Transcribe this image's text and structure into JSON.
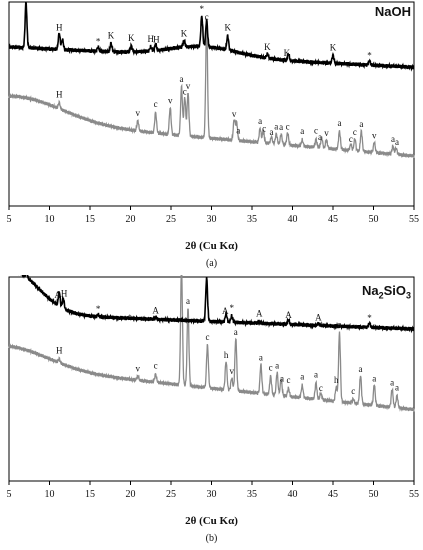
{
  "chart_data": [
    {
      "type": "line",
      "title": "NaOH",
      "xlabel": "2θ (Cu Kα)",
      "ylabel": "",
      "xlim": [
        5,
        55
      ],
      "xticks": [
        5,
        10,
        15,
        20,
        25,
        30,
        35,
        40,
        45,
        50,
        55
      ],
      "caption": "(a)",
      "grid": false,
      "series": [
        {
          "color": "#8a8a8a",
          "baseline": 0.42,
          "slope": -0.0035,
          "bump": {
            "center": 6,
            "amp": 0.12,
            "width": 8
          },
          "peaks": [
            [
              11.2,
              0.03
            ],
            [
              20.9,
              0.05
            ],
            [
              23.1,
              0.1
            ],
            [
              24.9,
              0.13
            ],
            [
              26.3,
              0.24
            ],
            [
              26.7,
              0.19
            ],
            [
              27.1,
              0.21
            ],
            [
              29.4,
              0.56
            ],
            [
              32.8,
              0.1
            ],
            [
              33.1,
              0.09
            ],
            [
              36.0,
              0.07
            ],
            [
              36.4,
              0.06
            ],
            [
              37.4,
              0.03
            ],
            [
              38.0,
              0.05
            ],
            [
              38.6,
              0.05
            ],
            [
              39.4,
              0.06
            ],
            [
              41.2,
              0.03
            ],
            [
              42.9,
              0.04
            ],
            [
              43.6,
              0.05
            ],
            [
              44.2,
              0.04
            ],
            [
              45.8,
              0.09
            ],
            [
              47.2,
              0.03
            ],
            [
              47.7,
              0.06
            ],
            [
              48.5,
              0.1
            ],
            [
              50.1,
              0.05
            ],
            [
              52.4,
              0.04
            ],
            [
              52.8,
              0.03
            ]
          ]
        },
        {
          "color": "#000000",
          "baseline": 0.78,
          "slope": -0.002,
          "bump": {
            "center": 29,
            "amp": 0.05,
            "width": 6
          },
          "peaks": [
            [
              7.1,
              0.22
            ],
            [
              11.2,
              0.08
            ],
            [
              11.6,
              0.05
            ],
            [
              16.0,
              0.02
            ],
            [
              17.6,
              0.04
            ],
            [
              20.1,
              0.03
            ],
            [
              22.5,
              0.02
            ],
            [
              23.1,
              0.03
            ],
            [
              26.6,
              0.03
            ],
            [
              28.8,
              0.15
            ],
            [
              29.4,
              0.13
            ],
            [
              32.0,
              0.07
            ],
            [
              36.9,
              0.02
            ],
            [
              39.5,
              0.03
            ],
            [
              45.0,
              0.04
            ],
            [
              49.5,
              0.02
            ]
          ]
        }
      ],
      "annotations": [
        {
          "x": 11.2,
          "label": "H",
          "series": 0
        },
        {
          "x": 20.9,
          "label": "v",
          "series": 0
        },
        {
          "x": 23.1,
          "label": "c",
          "series": 0
        },
        {
          "x": 24.9,
          "label": "v",
          "series": 0
        },
        {
          "x": 26.3,
          "label": "a",
          "series": 0
        },
        {
          "x": 26.7,
          "label": "c",
          "series": 0
        },
        {
          "x": 27.1,
          "label": "v",
          "series": 0
        },
        {
          "x": 29.4,
          "label": "c",
          "series": 0
        },
        {
          "x": 32.8,
          "label": "v",
          "series": 0
        },
        {
          "x": 33.3,
          "label": "a",
          "series": 0
        },
        {
          "x": 36.0,
          "label": "a",
          "series": 0
        },
        {
          "x": 36.5,
          "label": "c",
          "series": 0
        },
        {
          "x": 37.4,
          "label": "a",
          "series": 0
        },
        {
          "x": 38.0,
          "label": "a",
          "series": 0
        },
        {
          "x": 38.6,
          "label": "a",
          "series": 0
        },
        {
          "x": 39.4,
          "label": "c",
          "series": 0
        },
        {
          "x": 41.2,
          "label": "a",
          "series": 0
        },
        {
          "x": 42.9,
          "label": "c",
          "series": 0
        },
        {
          "x": 43.4,
          "label": "a",
          "series": 0
        },
        {
          "x": 44.2,
          "label": "v",
          "series": 0
        },
        {
          "x": 45.8,
          "label": "a",
          "series": 0
        },
        {
          "x": 47.2,
          "label": "c",
          "series": 0
        },
        {
          "x": 47.7,
          "label": "c",
          "series": 0
        },
        {
          "x": 48.5,
          "label": "a",
          "series": 0
        },
        {
          "x": 50.1,
          "label": "v",
          "series": 0
        },
        {
          "x": 52.4,
          "label": "a",
          "series": 0
        },
        {
          "x": 52.9,
          "label": "a",
          "series": 0
        },
        {
          "x": 7.1,
          "label": "*",
          "series": 1
        },
        {
          "x": 11.2,
          "label": "H",
          "series": 1
        },
        {
          "x": 16.0,
          "label": "*",
          "series": 1
        },
        {
          "x": 17.6,
          "label": "K",
          "series": 1
        },
        {
          "x": 20.1,
          "label": "K",
          "series": 1
        },
        {
          "x": 22.5,
          "label": "H",
          "series": 1
        },
        {
          "x": 23.2,
          "label": "H",
          "series": 1
        },
        {
          "x": 26.6,
          "label": "K",
          "series": 1
        },
        {
          "x": 28.8,
          "label": "*",
          "series": 1
        },
        {
          "x": 32.0,
          "label": "K",
          "series": 1
        },
        {
          "x": 36.9,
          "label": "K",
          "series": 1
        },
        {
          "x": 39.3,
          "label": "K",
          "series": 1
        },
        {
          "x": 45.0,
          "label": "K",
          "series": 1
        },
        {
          "x": 49.5,
          "label": "*",
          "series": 1
        }
      ]
    },
    {
      "type": "line",
      "title": "Na2SiO3",
      "title_main": "Na",
      "title_sub1": "2",
      "title_mid": "SiO",
      "title_sub2": "3",
      "xlabel": "2θ (Cu Kα)",
      "ylabel": "",
      "xlim": [
        5,
        55
      ],
      "xticks": [
        5,
        10,
        15,
        20,
        25,
        30,
        35,
        40,
        45,
        50,
        55
      ],
      "caption": "(b)",
      "grid": false,
      "series": [
        {
          "color": "#8a8a8a",
          "baseline": 0.56,
          "slope": -0.0042,
          "bump": {
            "center": 5,
            "amp": 0.1,
            "width": 7
          },
          "peaks": [
            [
              11.2,
              0.02
            ],
            [
              20.9,
              0.02
            ],
            [
              23.1,
              0.04
            ],
            [
              26.3,
              0.58
            ],
            [
              27.1,
              0.38
            ],
            [
              29.5,
              0.21
            ],
            [
              31.8,
              0.14
            ],
            [
              32.5,
              0.06
            ],
            [
              33.0,
              0.26
            ],
            [
              36.1,
              0.14
            ],
            [
              37.3,
              0.09
            ],
            [
              38.1,
              0.11
            ],
            [
              38.6,
              0.08
            ],
            [
              39.5,
              0.04
            ],
            [
              41.2,
              0.06
            ],
            [
              42.9,
              0.08
            ],
            [
              43.5,
              0.03
            ],
            [
              45.4,
              0.07
            ],
            [
              45.8,
              0.34
            ],
            [
              47.5,
              0.02
            ],
            [
              48.4,
              0.14
            ],
            [
              50.1,
              0.1
            ],
            [
              52.3,
              0.09
            ],
            [
              52.9,
              0.06
            ]
          ]
        },
        {
          "color": "#000000",
          "baseline": 0.82,
          "slope": -0.0015,
          "bump": {
            "center": 5,
            "amp": 0.22,
            "width": 5
          },
          "peaks": [
            [
              7.2,
              0.02
            ],
            [
              11.2,
              0.07
            ],
            [
              11.7,
              0.05
            ],
            [
              16.0,
              0.01
            ],
            [
              23.1,
              0.01
            ],
            [
              29.4,
              0.21
            ],
            [
              31.8,
              0.04
            ],
            [
              32.5,
              0.03
            ],
            [
              35.9,
              0.01
            ],
            [
              39.5,
              0.02
            ],
            [
              43.2,
              0.01
            ],
            [
              49.5,
              0.02
            ]
          ]
        }
      ],
      "annotations": [
        {
          "x": 11.2,
          "label": "H",
          "series": 0
        },
        {
          "x": 20.9,
          "label": "v",
          "series": 0
        },
        {
          "x": 23.1,
          "label": "c",
          "series": 0
        },
        {
          "x": 26.3,
          "label": "a",
          "series": 0
        },
        {
          "x": 27.1,
          "label": "a",
          "series": 0
        },
        {
          "x": 29.5,
          "label": "c",
          "series": 0
        },
        {
          "x": 31.8,
          "label": "h",
          "series": 0
        },
        {
          "x": 32.5,
          "label": "v",
          "series": 0
        },
        {
          "x": 33.0,
          "label": "a",
          "series": 0
        },
        {
          "x": 36.1,
          "label": "a",
          "series": 0
        },
        {
          "x": 37.3,
          "label": "c",
          "series": 0
        },
        {
          "x": 38.1,
          "label": "a",
          "series": 0
        },
        {
          "x": 38.7,
          "label": "a",
          "series": 0
        },
        {
          "x": 39.5,
          "label": "c",
          "series": 0
        },
        {
          "x": 41.2,
          "label": "a",
          "series": 0
        },
        {
          "x": 42.9,
          "label": "a",
          "series": 0
        },
        {
          "x": 43.5,
          "label": "c",
          "series": 0
        },
        {
          "x": 45.4,
          "label": "h",
          "series": 0
        },
        {
          "x": 45.8,
          "label": "a",
          "series": 0
        },
        {
          "x": 47.5,
          "label": "c",
          "series": 0
        },
        {
          "x": 48.4,
          "label": "a",
          "series": 0
        },
        {
          "x": 50.1,
          "label": "a",
          "series": 0
        },
        {
          "x": 52.3,
          "label": "a",
          "series": 0
        },
        {
          "x": 52.9,
          "label": "a",
          "series": 0
        },
        {
          "x": 7.2,
          "label": "*",
          "series": 1
        },
        {
          "x": 11.0,
          "label": "A",
          "series": 1
        },
        {
          "x": 11.8,
          "label": "H",
          "series": 1
        },
        {
          "x": 16.0,
          "label": "*",
          "series": 1
        },
        {
          "x": 23.1,
          "label": "A",
          "series": 1
        },
        {
          "x": 29.4,
          "label": "*",
          "series": 1
        },
        {
          "x": 31.7,
          "label": "A",
          "series": 1
        },
        {
          "x": 32.5,
          "label": "*",
          "series": 1
        },
        {
          "x": 35.9,
          "label": "A",
          "series": 1
        },
        {
          "x": 39.5,
          "label": "A",
          "series": 1
        },
        {
          "x": 43.2,
          "label": "A",
          "series": 1
        },
        {
          "x": 49.5,
          "label": "*",
          "series": 1
        }
      ]
    }
  ]
}
